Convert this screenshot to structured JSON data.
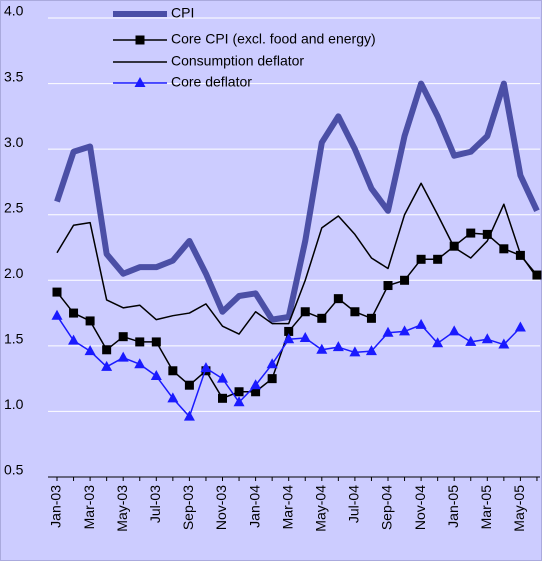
{
  "chart_data": {
    "type": "line",
    "categories": [
      "Jan-03",
      null,
      "Mar-03",
      null,
      "May-03",
      null,
      "Jul-03",
      null,
      "Sep-03",
      null,
      "Nov-03",
      null,
      "Jan-04",
      null,
      "Mar-04",
      null,
      "May-04",
      null,
      "Jul-04",
      null,
      "Sep-04",
      null,
      "Nov-04",
      null,
      "Jan-05",
      null,
      "Mar-05",
      null,
      "May-05",
      null
    ],
    "series": [
      {
        "name": "CPI",
        "color": "#4b4fa6",
        "width": 6,
        "marker": null,
        "values": [
          2.6,
          2.98,
          3.02,
          2.2,
          2.05,
          2.1,
          2.1,
          2.15,
          2.3,
          2.05,
          1.76,
          1.88,
          1.9,
          1.7,
          1.72,
          2.3,
          3.05,
          3.25,
          3.0,
          2.7,
          2.53,
          3.1,
          3.5,
          3.25,
          2.95,
          2.98,
          3.1,
          3.5,
          2.8,
          2.53
        ]
      },
      {
        "name": "Core CPI (excl. food and energy)",
        "color": "#000000",
        "width": 1.5,
        "marker": "square",
        "values": [
          1.91,
          1.75,
          1.69,
          1.47,
          1.57,
          1.53,
          1.53,
          1.31,
          1.2,
          1.31,
          1.1,
          1.15,
          1.15,
          1.25,
          1.61,
          1.76,
          1.71,
          1.86,
          1.76,
          1.71,
          1.96,
          2.0,
          2.16,
          2.16,
          2.26,
          2.36,
          2.35,
          2.24,
          2.19,
          2.04
        ]
      },
      {
        "name": "Consumption deflator",
        "color": "#000000",
        "width": 1.5,
        "marker": null,
        "values": [
          2.21,
          2.42,
          2.44,
          1.85,
          1.79,
          1.81,
          1.7,
          1.73,
          1.75,
          1.82,
          1.65,
          1.59,
          1.76,
          1.67,
          1.67,
          2.0,
          2.4,
          2.49,
          2.35,
          2.17,
          2.09,
          2.5,
          2.74,
          2.5,
          2.25,
          2.17,
          2.3,
          2.58,
          2.2,
          2.02
        ]
      },
      {
        "name": "Core deflator",
        "color": "#1a1aff",
        "width": 1.5,
        "marker": "triangle",
        "values": [
          1.73,
          1.54,
          1.46,
          1.34,
          1.41,
          1.36,
          1.27,
          1.1,
          0.96,
          1.33,
          1.25,
          1.07,
          1.2,
          1.36,
          1.55,
          1.56,
          1.47,
          1.49,
          1.45,
          1.46,
          1.6,
          1.61,
          1.66,
          1.52,
          1.61,
          1.53,
          1.55,
          1.51,
          1.64,
          null
        ]
      }
    ],
    "ylim": [
      0.5,
      4.0
    ],
    "yticks": [
      0.5,
      {
        "value": 1,
        "label": "1.0"
      },
      1.5,
      {
        "value": 2,
        "label": "2.0"
      },
      2.5,
      {
        "value": 3,
        "label": "3.0"
      },
      3.5,
      {
        "value": 4,
        "label": "4.0"
      }
    ],
    "grid": true
  }
}
